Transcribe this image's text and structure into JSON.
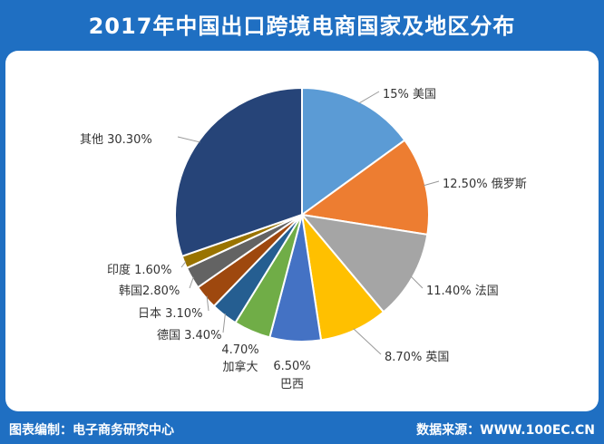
{
  "title": "2017年中国出口跨境电商国家及地区分布",
  "footer": {
    "left": "图表编制：电子商务研究中心",
    "right": "数据来源：WWW.100EC.CN"
  },
  "chart_data": {
    "type": "pie",
    "title": "2017年中国出口跨境电商国家及地区分布",
    "slices": [
      {
        "name": "美国",
        "value": 15,
        "label": "15%  美国",
        "color": "#5b9bd5"
      },
      {
        "name": "俄罗斯",
        "value": 12.5,
        "label": "12.50% 俄罗斯",
        "color": "#ed7d31"
      },
      {
        "name": "法国",
        "value": 11.4,
        "label": "11.40% 法国",
        "color": "#a5a5a5"
      },
      {
        "name": "英国",
        "value": 8.7,
        "label": "8.70%  英国",
        "color": "#ffc000"
      },
      {
        "name": "巴西",
        "value": 6.5,
        "label": "6.50%",
        "sublabel": "巴西",
        "color": "#4472c4"
      },
      {
        "name": "加拿大",
        "value": 4.7,
        "label": "4.70%",
        "sublabel": "加拿大",
        "color": "#70ad47"
      },
      {
        "name": "德国",
        "value": 3.4,
        "label": "德国  3.40%",
        "color": "#255e91"
      },
      {
        "name": "日本",
        "value": 3.1,
        "label": "日本  3.10%",
        "color": "#9e480e"
      },
      {
        "name": "韩国",
        "value": 2.8,
        "label": "韩国2.80%",
        "color": "#636363"
      },
      {
        "name": "印度",
        "value": 1.6,
        "label": "印度  1.60%",
        "color": "#997300"
      },
      {
        "name": "其他",
        "value": 30.3,
        "label": "其他 30.30%",
        "color": "#264478"
      }
    ]
  }
}
